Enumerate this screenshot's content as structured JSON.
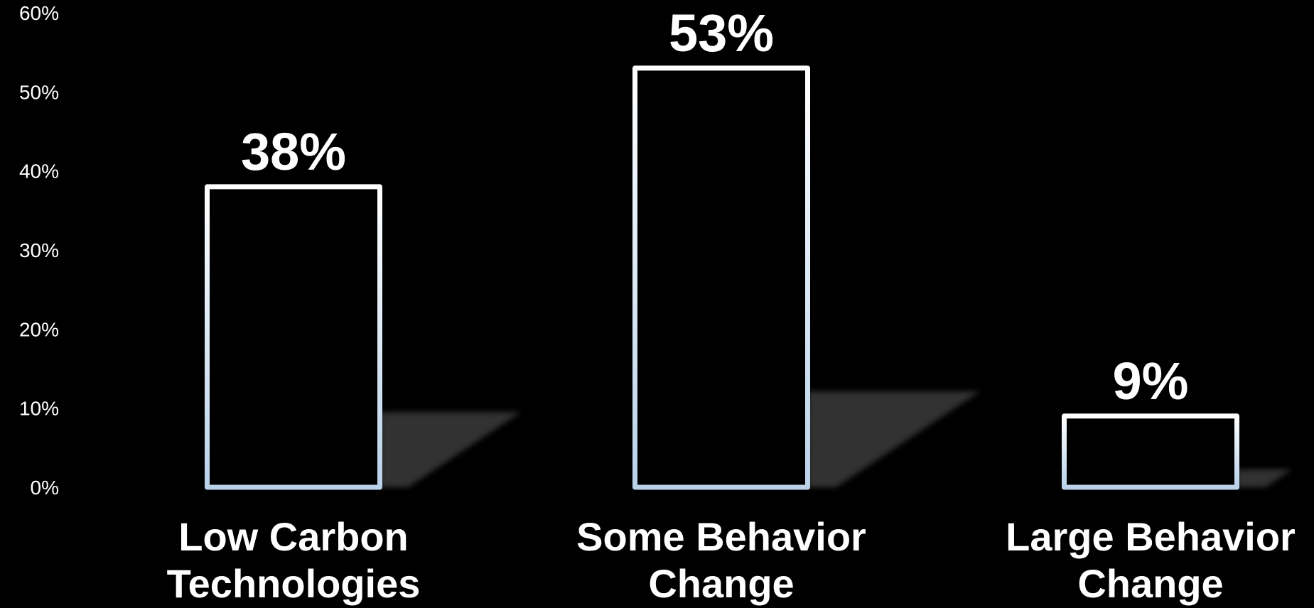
{
  "chart_data": {
    "type": "bar",
    "categories": [
      [
        "Low Carbon",
        "Technologies"
      ],
      [
        "Some Behavior",
        "Change"
      ],
      [
        "Large Behavior",
        "Change"
      ]
    ],
    "values": [
      38,
      53,
      9
    ],
    "value_labels": [
      "38%",
      "53%",
      "9%"
    ],
    "ylim": [
      0,
      60
    ],
    "yticks": [
      0,
      10,
      20,
      30,
      40,
      50,
      60
    ],
    "ytick_labels": [
      "0%",
      "10%",
      "20%",
      "30%",
      "40%",
      "50%",
      "60%"
    ],
    "title": "",
    "xlabel": "",
    "ylabel": "",
    "grid": false,
    "legend": "none"
  },
  "colors": {
    "background": "#000000",
    "bar_outline_top": "#ffffff",
    "bar_outline_bottom": "#b9d2ea",
    "bar_fill": "#000000",
    "text": "#ffffff",
    "shadow": "#3a3a3a"
  }
}
